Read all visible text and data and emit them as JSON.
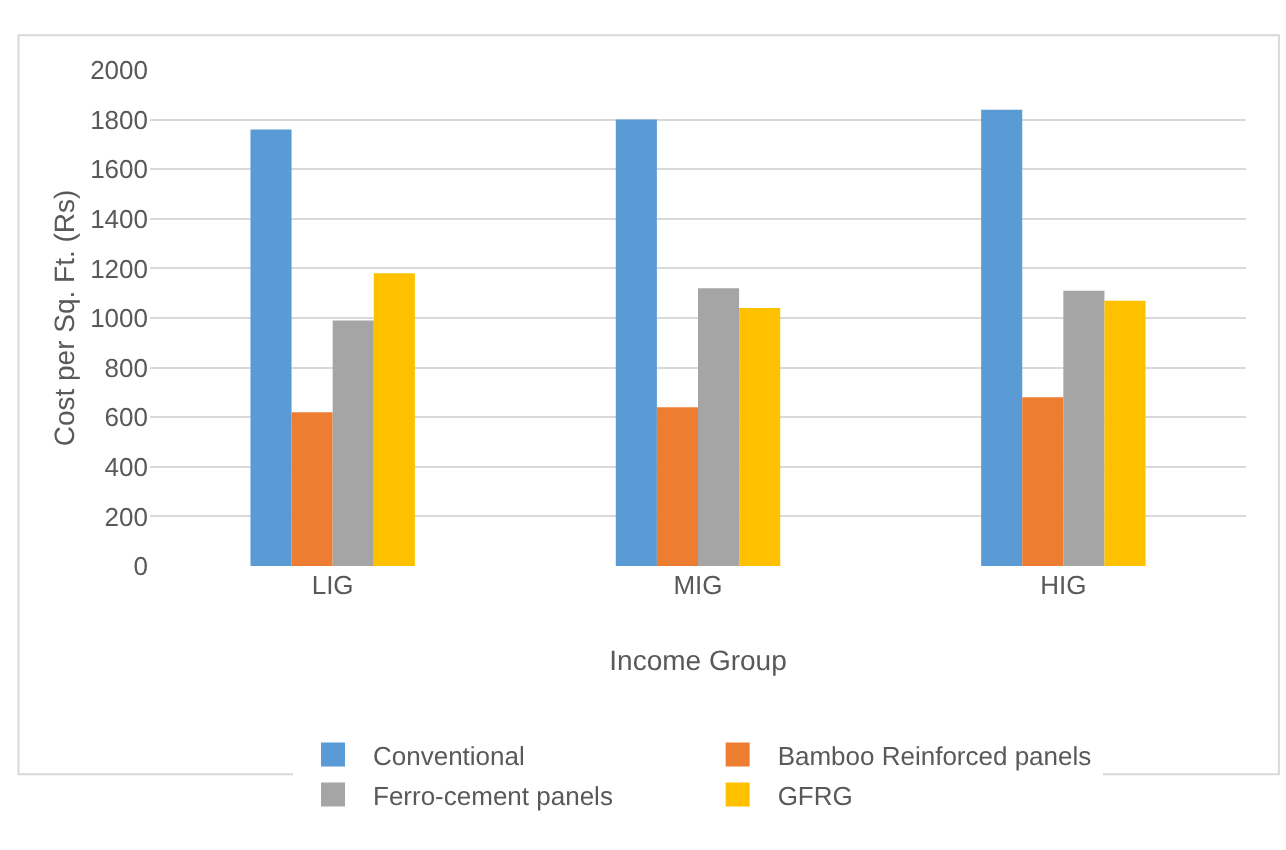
{
  "chart_data": {
    "type": "bar",
    "xlabel": "Income Group",
    "ylabel": "Cost per Sq. Ft. (Rs)",
    "categories": [
      "LIG",
      "MIG",
      "HIG"
    ],
    "series": [
      {
        "name": "Conventional",
        "color": "#5b9bd5",
        "values": [
          1760,
          1800,
          1840
        ]
      },
      {
        "name": "Bamboo Reinforced panels",
        "color": "#ed7d31",
        "values": [
          620,
          640,
          680
        ]
      },
      {
        "name": "Ferro-cement panels",
        "color": "#a5a5a5",
        "values": [
          990,
          1120,
          1110
        ]
      },
      {
        "name": "GFRG",
        "color": "#ffc000",
        "values": [
          1180,
          1040,
          1070
        ]
      }
    ],
    "ylim": [
      0,
      2000
    ],
    "yticks": [
      0,
      200,
      400,
      600,
      800,
      1000,
      1200,
      1400,
      1600,
      1800,
      2000
    ],
    "grid": "y",
    "legend": "bottom"
  }
}
